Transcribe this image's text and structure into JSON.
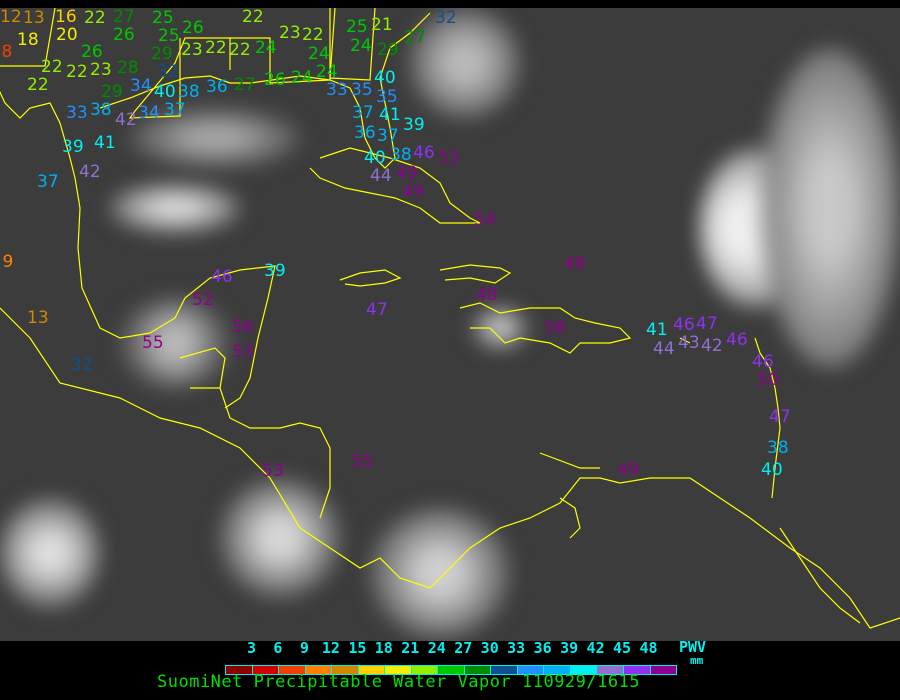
{
  "legend": {
    "ticks": [
      "3",
      "6",
      "9",
      "12",
      "15",
      "18",
      "21",
      "24",
      "27",
      "30",
      "33",
      "36",
      "39",
      "42",
      "45",
      "48"
    ],
    "unit_top": "PWV",
    "unit_bottom": "mm",
    "colors": [
      "#8b0000",
      "#d00000",
      "#f04000",
      "#ff8000",
      "#d08800",
      "#ffd000",
      "#f0f000",
      "#90f000",
      "#00c800",
      "#008c00",
      "#105090",
      "#2090ff",
      "#00b0f0",
      "#00f0f0",
      "#9070d0",
      "#9030f0",
      "#900090"
    ]
  },
  "title": "SuomiNet Precipitable Water Vapor 110929/1615",
  "map": {
    "coastline_color": "#ffff00",
    "stations": [
      12,
      13,
      16,
      22,
      27,
      26,
      25,
      25,
      26,
      20,
      18,
      8,
      26,
      29,
      23,
      22,
      22,
      24,
      22,
      22,
      23,
      28,
      32,
      22,
      29,
      34,
      40,
      38,
      36,
      27,
      26,
      24,
      33,
      38,
      42,
      34,
      37,
      39,
      41,
      42,
      37,
      22,
      23,
      22,
      24,
      24,
      25,
      21,
      24,
      29,
      27,
      32,
      33,
      35,
      35,
      40,
      37,
      41,
      36,
      37,
      39,
      38,
      40,
      46,
      53,
      44,
      49,
      49,
      9,
      13,
      32,
      46,
      39,
      52,
      55,
      56,
      53,
      47,
      53,
      55,
      54,
      48,
      48,
      56,
      41,
      44,
      43,
      46,
      47,
      42,
      46,
      46,
      50,
      47,
      38,
      40,
      49
    ]
  }
}
